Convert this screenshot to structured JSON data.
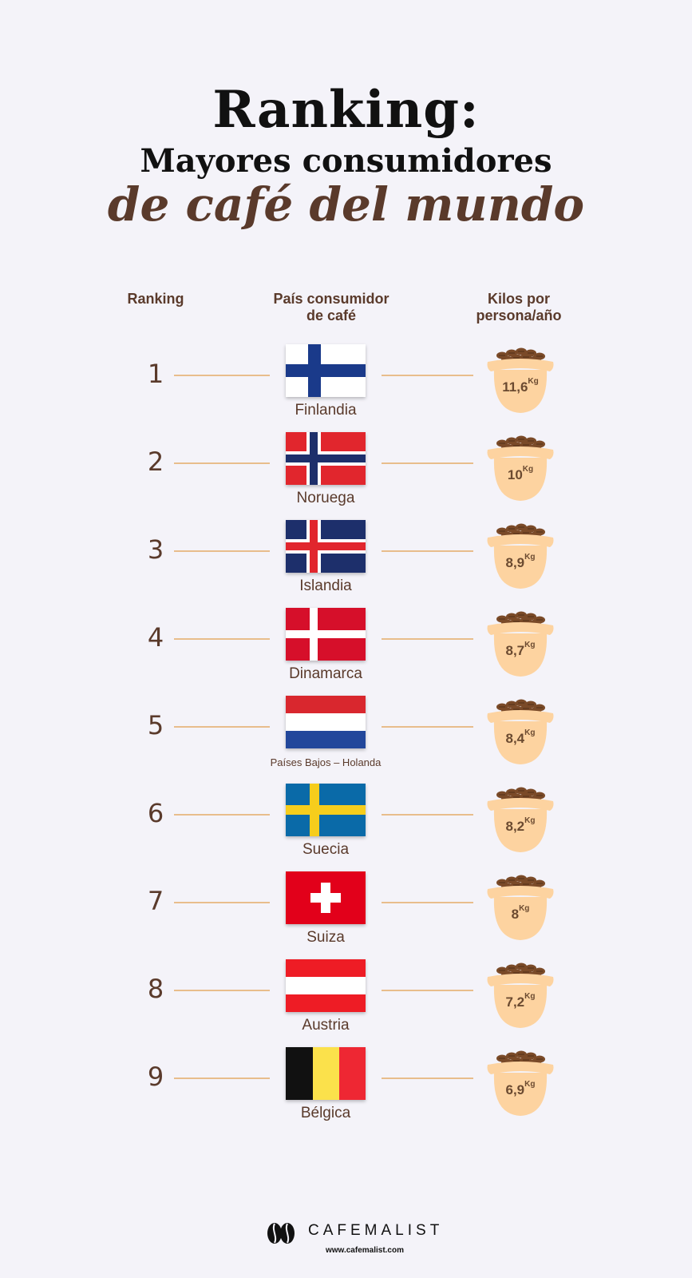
{
  "title": {
    "line1": "Ranking:",
    "line2": "Mayores consumidores",
    "line3": "de café del mundo"
  },
  "headers": {
    "rank": "Ranking",
    "country_1": "País consumidor",
    "country_2": "de café",
    "kilos_1": "Kilos por",
    "kilos_2": "persona/año"
  },
  "unit": "Kg",
  "rows": [
    {
      "rank": "1",
      "country": "Finlandia",
      "kilos": "11,6",
      "flag": "finland-flag"
    },
    {
      "rank": "2",
      "country": "Noruega",
      "kilos": "10",
      "flag": "norway-flag"
    },
    {
      "rank": "3",
      "country": "Islandia",
      "kilos": "8,9",
      "flag": "iceland-flag"
    },
    {
      "rank": "4",
      "country": "Dinamarca",
      "kilos": "8,7",
      "flag": "denmark-flag"
    },
    {
      "rank": "5",
      "country": "Países Bajos – Holanda",
      "kilos": "8,4",
      "flag": "netherlands-flag"
    },
    {
      "rank": "6",
      "country": "Suecia",
      "kilos": "8,2",
      "flag": "sweden-flag"
    },
    {
      "rank": "7",
      "country": "Suiza",
      "kilos": "8",
      "flag": "switzerland-flag"
    },
    {
      "rank": "8",
      "country": "Austria",
      "kilos": "7,2",
      "flag": "austria-flag"
    },
    {
      "rank": "9",
      "country": "Bélgica",
      "kilos": "6,9",
      "flag": "belgium-flag"
    }
  ],
  "colors": {
    "brown": "#5a3a2b",
    "line": "#e8bd8c",
    "sack": "#fdd3a0",
    "background": "#f4f3f9"
  },
  "footer": {
    "brand": "CAFEMALIST",
    "url": "www.cafemalist.com",
    "logo_icon": "coffee-bean-icon"
  }
}
